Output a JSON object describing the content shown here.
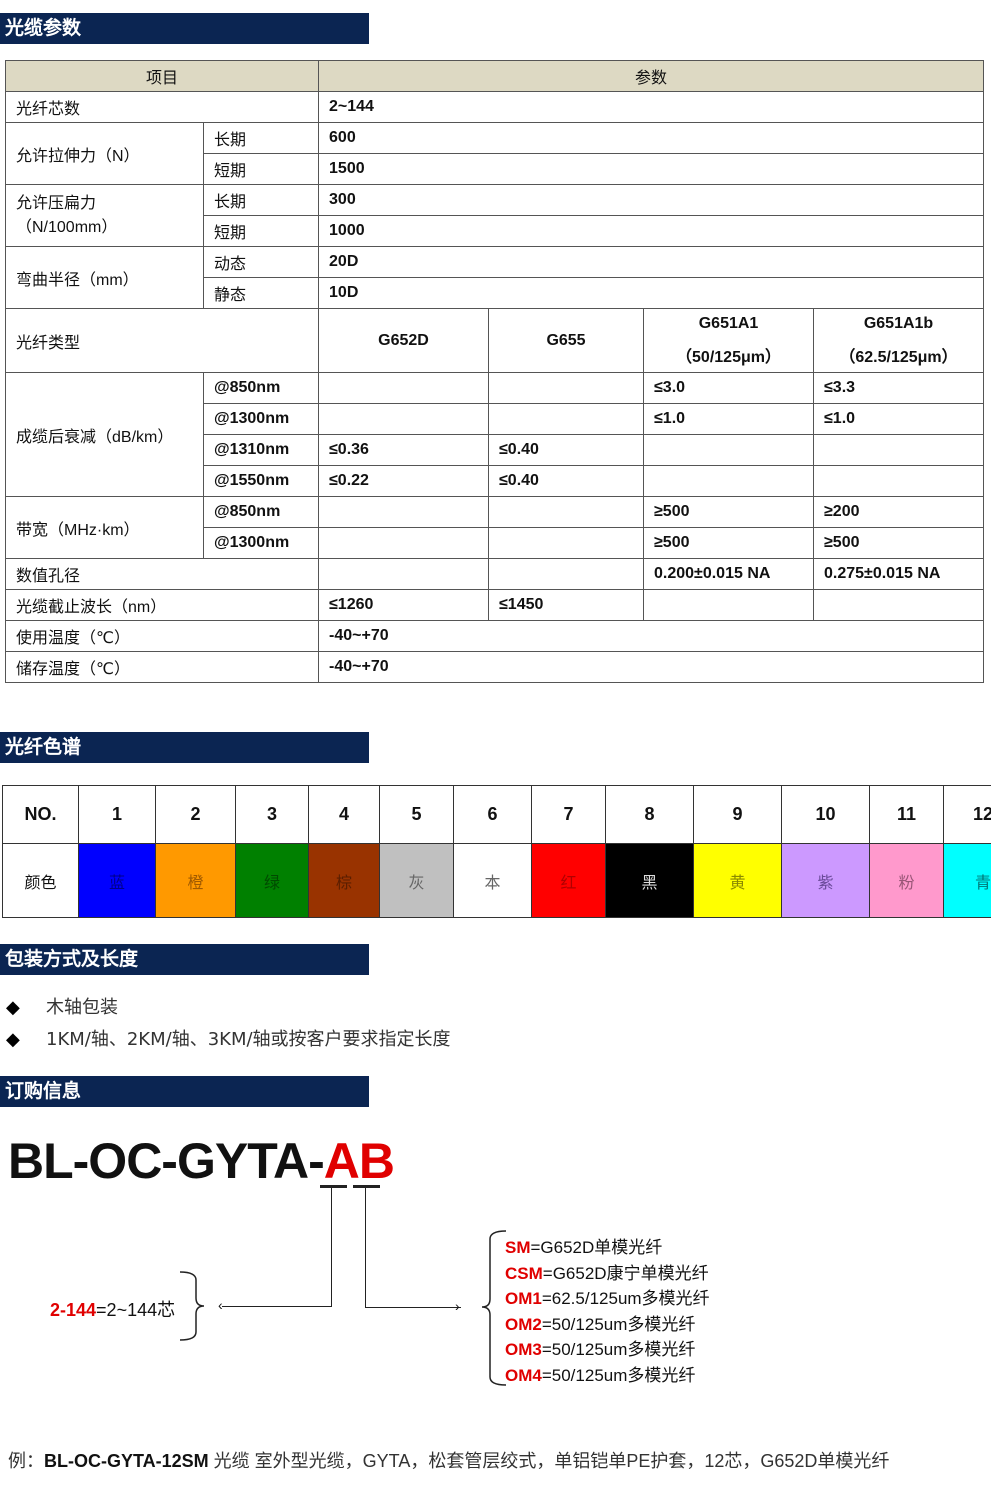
{
  "sections": {
    "cable_params": "光缆参数",
    "fiber_colors": "光纤色谱",
    "packaging": "包装方式及长度",
    "ordering": "订购信息"
  },
  "spec": {
    "header": [
      "项目",
      "参数"
    ],
    "fiber_count": {
      "label": "光纤芯数",
      "value": "2~144"
    },
    "tensile": {
      "label": "允许拉伸力（N）",
      "long_label": "长期",
      "long": "600",
      "short_label": "短期",
      "short": "1500"
    },
    "crush": {
      "label1": "允许压扁力",
      "label2": "（N/100mm）",
      "long_label": "长期",
      "long": "300",
      "short_label": "短期",
      "short": "1000"
    },
    "bend": {
      "label": "弯曲半径（mm）",
      "dynamic_label": "动态",
      "dynamic": "20D",
      "static_label": "静态",
      "static": "10D"
    },
    "fiber_type": {
      "label": "光纤类型",
      "types": [
        {
          "l1": "G652D",
          "l2": ""
        },
        {
          "l1": "G655",
          "l2": ""
        },
        {
          "l1": "G651A1",
          "l2": "（50/125μm）"
        },
        {
          "l1": "G651A1b",
          "l2": "（62.5/125μm）"
        }
      ]
    },
    "attenuation": {
      "label": "成缆后衰减（dB/km）",
      "rows": [
        {
          "wl": "@850nm",
          "v": [
            "",
            "",
            "≤3.0",
            "≤3.3"
          ]
        },
        {
          "wl": "@1300nm",
          "v": [
            "",
            "",
            "≤1.0",
            "≤1.0"
          ]
        },
        {
          "wl": "@1310nm",
          "v": [
            "≤0.36",
            "≤0.40",
            "",
            ""
          ]
        },
        {
          "wl": "@1550nm",
          "v": [
            "≤0.22",
            "≤0.40",
            "",
            ""
          ]
        }
      ]
    },
    "bandwidth": {
      "label": "带宽（MHz·km）",
      "rows": [
        {
          "wl": "@850nm",
          "v": [
            "",
            "",
            "≥500",
            "≥200"
          ]
        },
        {
          "wl": "@1300nm",
          "v": [
            "",
            "",
            "≥500",
            "≥500"
          ]
        }
      ]
    },
    "na": {
      "label": "数值孔径",
      "v": [
        "",
        "",
        "0.200±0.015 NA",
        "0.275±0.015 NA"
      ]
    },
    "cutoff": {
      "label": "光缆截止波长（nm）",
      "v": [
        "≤1260",
        "≤1450",
        "",
        ""
      ]
    },
    "op_temp": {
      "label": "使用温度（℃）",
      "value": "-40~+70"
    },
    "storage_temp": {
      "label": "储存温度（℃）",
      "value": "-40~+70"
    }
  },
  "colors": {
    "no_label": "NO.",
    "color_label": "颜色",
    "items": [
      {
        "n": "1",
        "name": "蓝",
        "bg": "#0000ff",
        "fg": "#00008a"
      },
      {
        "n": "2",
        "name": "橙",
        "bg": "#ff9900",
        "fg": "#a05a00"
      },
      {
        "n": "3",
        "name": "绿",
        "bg": "#008000",
        "fg": "#004a00"
      },
      {
        "n": "4",
        "name": "棕",
        "bg": "#993300",
        "fg": "#5a1e00"
      },
      {
        "n": "5",
        "name": "灰",
        "bg": "#c0c0c0",
        "fg": "#666666"
      },
      {
        "n": "6",
        "name": "本",
        "bg": "#ffffff",
        "fg": "#666666"
      },
      {
        "n": "7",
        "name": "红",
        "bg": "#ff0000",
        "fg": "#b00000"
      },
      {
        "n": "8",
        "name": "黑",
        "bg": "#000000",
        "fg": "#dddddd"
      },
      {
        "n": "9",
        "name": "黄",
        "bg": "#ffff00",
        "fg": "#8a8a00"
      },
      {
        "n": "10",
        "name": "紫",
        "bg": "#cc99ff",
        "fg": "#6a4a99"
      },
      {
        "n": "11",
        "name": "粉",
        "bg": "#ff99cc",
        "fg": "#995577"
      },
      {
        "n": "12",
        "name": "青",
        "bg": "#00ffff",
        "fg": "#007777"
      }
    ]
  },
  "packaging": [
    "木轴包装",
    "1KM/轴、2KM/轴、3KM/轴或按客户要求指定长度"
  ],
  "ordering": {
    "model_prefix": "BL-OC-GYTA-",
    "a": "A",
    "b": "B",
    "a_code": "2-144",
    "a_desc": "=2~144芯",
    "options": [
      {
        "code": "SM",
        "desc": "=G652D单模光纤"
      },
      {
        "code": "CSM",
        "desc": "=G652D康宁单模光纤"
      },
      {
        "code": "OM1",
        "desc": "=62.5/125um多模光纤"
      },
      {
        "code": "OM2",
        "desc": "=50/125um多模光纤"
      },
      {
        "code": "OM3",
        "desc": "=50/125um多模光纤"
      },
      {
        "code": "OM4",
        "desc": "=50/125um多模光纤"
      }
    ],
    "example_label": "例：",
    "example_model": "BL-OC-GYTA-12SM",
    "example_desc": " 光缆 室外型光缆，GYTA，松套管层绞式，单铝铠单PE护套，12芯，G652D单模光纤"
  }
}
